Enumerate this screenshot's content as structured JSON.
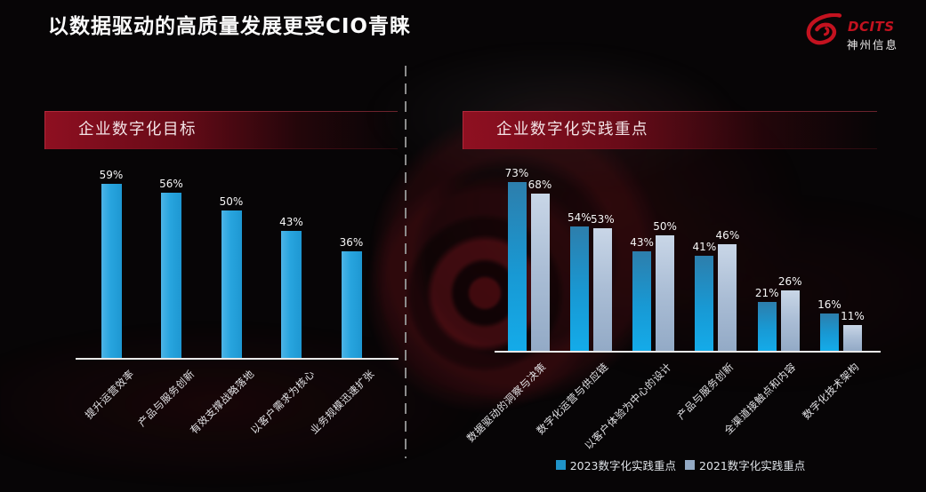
{
  "title": "以数据驱动的高质量发展更受CIO青睐",
  "logo": {
    "brand": "DCITS",
    "company": "神州信息"
  },
  "chart_data": [
    {
      "type": "bar",
      "title": "企业数字化目标",
      "categories": [
        "提升运营效率",
        "产品与服务创新",
        "有效支撑战略落地",
        "以客户需求为核心",
        "业务规模迅速扩张"
      ],
      "values": [
        59,
        56,
        50,
        43,
        36
      ],
      "data_labels": [
        "59%",
        "56%",
        "50%",
        "43%",
        "36%"
      ],
      "unit": "percent",
      "ylim": [
        0,
        65
      ],
      "grid": false,
      "legend_position": "none",
      "xlabel": "",
      "ylabel": ""
    },
    {
      "type": "bar",
      "title": "企业数字化实践重点",
      "categories": [
        "数据驱动的洞察与决策",
        "数字化运营与供应链",
        "以客户体验为中心的设计",
        "产品与服务创新",
        "全渠道接触点和内容",
        "数字化技术架构"
      ],
      "series": [
        {
          "name": "2023数字化实践重点",
          "values": [
            73,
            54,
            43,
            41,
            21,
            16
          ],
          "data_labels": [
            "73%",
            "54%",
            "43%",
            "41%",
            "21%",
            "16%"
          ]
        },
        {
          "name": "2021数字化实践重点",
          "values": [
            68,
            53,
            50,
            46,
            26,
            11
          ],
          "data_labels": [
            "68%",
            "53%",
            "50%",
            "46%",
            "26%",
            "11%"
          ]
        }
      ],
      "unit": "percent",
      "ylim": [
        0,
        80
      ],
      "grid": false,
      "legend_position": "bottom",
      "xlabel": "",
      "ylabel": ""
    }
  ],
  "legend": {
    "items": [
      {
        "label": "2023数字化实践重点",
        "color": "#1f93c8"
      },
      {
        "label": "2021数字化实践重点",
        "color": "#93a9c4"
      }
    ]
  },
  "colors": {
    "background": "#070506",
    "banner_red": "#8c1022",
    "logo_red": "#c3121f",
    "bar_blue_flat": "#29a7e0",
    "bar_blue_gradient_top": "#2d7eac",
    "bar_blue_gradient_bottom": "#14abe9",
    "bar_gray_gradient_top": "#c9d6e7",
    "bar_gray_gradient_bottom": "#93aac6",
    "axis": "#e9e9e9",
    "divider": "#8c8c8c"
  }
}
